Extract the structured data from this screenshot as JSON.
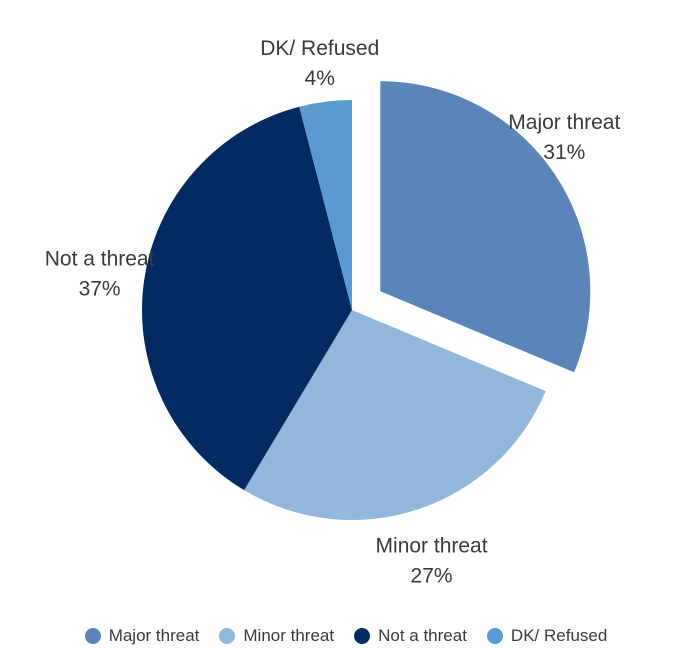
{
  "chart_data": {
    "type": "pie",
    "title": "",
    "slices": [
      {
        "label": "Major threat",
        "value": 31,
        "display": "31%",
        "color": "#5b84b8",
        "exploded": true
      },
      {
        "label": "Minor threat",
        "value": 27,
        "display": "27%",
        "color": "#93b6db",
        "exploded": false
      },
      {
        "label": "Not a threat",
        "value": 37,
        "display": "37%",
        "color": "#032b61",
        "exploded": false
      },
      {
        "label": "DK/ Refused",
        "value": 4,
        "display": "4%",
        "color": "#5a9ad0",
        "exploded": false
      }
    ],
    "start_angle_deg": 0,
    "direction": "clockwise",
    "legend_position": "bottom"
  }
}
